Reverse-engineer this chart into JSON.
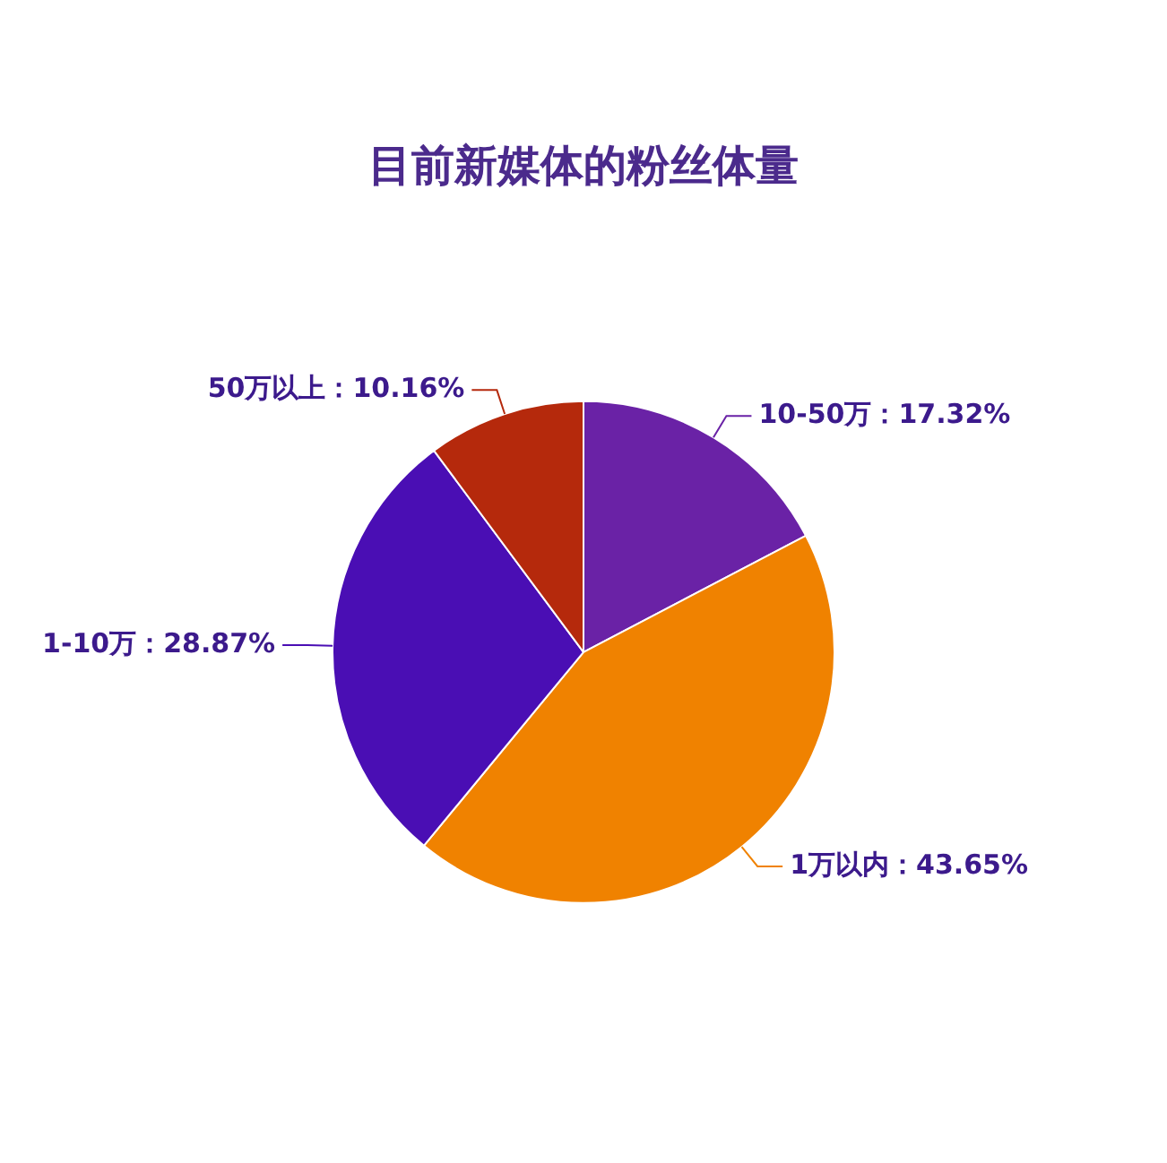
{
  "chart_data": {
    "type": "pie",
    "title": "目前新媒体的粉丝体量",
    "categories": [
      "10-50万",
      "1万以内",
      "1-10万",
      "50万以上"
    ],
    "values": [
      17.32,
      43.65,
      28.87,
      10.16
    ],
    "value_labels": [
      "：17.32%",
      "：43.65%",
      "：28.87%",
      "：10.16%"
    ],
    "colors": [
      "#6a22a6",
      "#f08200",
      "#4a0eb4",
      "#b5290c"
    ],
    "legend": false
  }
}
